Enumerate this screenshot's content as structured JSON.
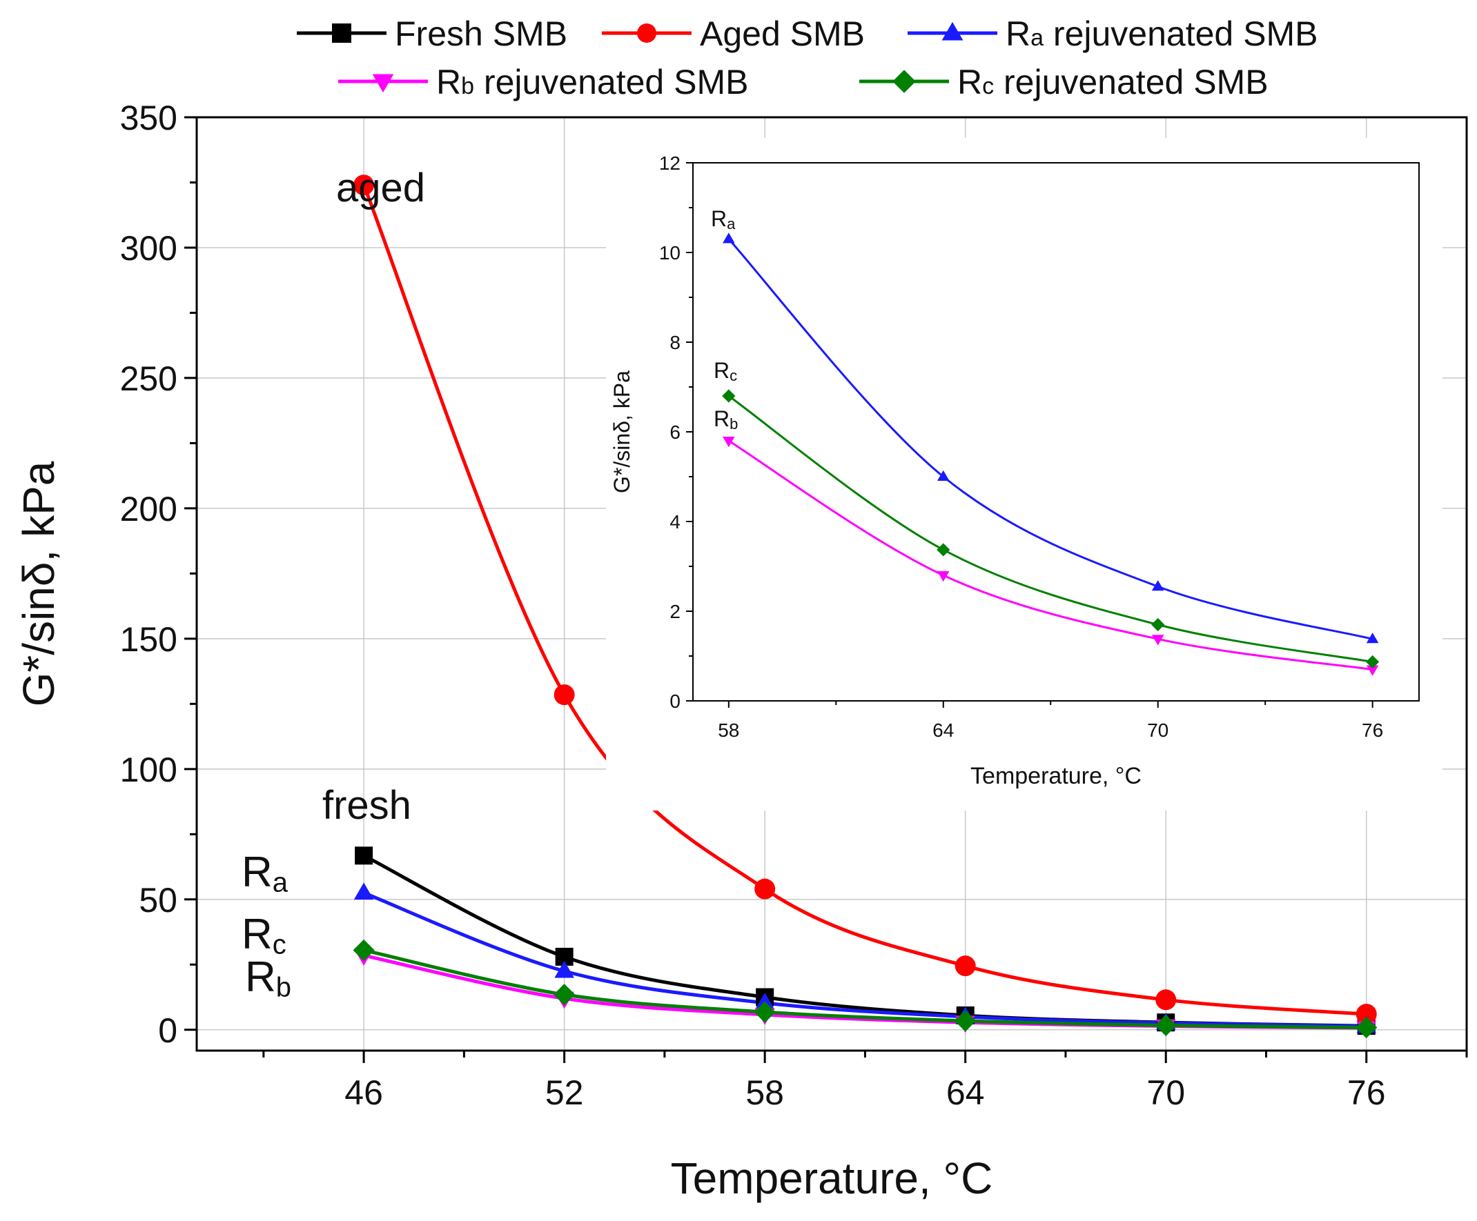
{
  "chart_data": [
    {
      "type": "line",
      "role": "main",
      "title": "",
      "xlabel": "Temperature, °C",
      "ylabel": "G*/sinδ, kPa",
      "xlim": [
        41,
        79
      ],
      "ylim": [
        -8,
        350
      ],
      "xticks": [
        46,
        52,
        58,
        64,
        70,
        76
      ],
      "yticks": [
        0,
        50,
        100,
        150,
        200,
        250,
        300,
        350
      ],
      "x": [
        46,
        52,
        58,
        64,
        70,
        76
      ],
      "grid": true,
      "legend_position": "top",
      "series": [
        {
          "name": "Fresh SMB",
          "color": "#000000",
          "marker": "square",
          "values": [
            66.8,
            28.0,
            12.5,
            5.5,
            2.8,
            1.5
          ]
        },
        {
          "name": "Aged SMB",
          "color": "#ff0000",
          "marker": "circle",
          "values": [
            324,
            128.5,
            54,
            24.5,
            11.5,
            6.0
          ]
        },
        {
          "name": "Ra rejuvenated SMB",
          "color": "#1a1aff",
          "marker": "triangle-up",
          "values": [
            52.5,
            22.5,
            10.3,
            5.0,
            2.6,
            1.4
          ]
        },
        {
          "name": "Rb rejuvenated SMB",
          "color": "#ff00ff",
          "marker": "triangle-down",
          "values": [
            28.5,
            12.0,
            5.8,
            2.8,
            1.4,
            0.7
          ]
        },
        {
          "name": "Rc rejuvenated SMB",
          "color": "#008000",
          "marker": "diamond",
          "values": [
            30.5,
            13.5,
            6.8,
            3.4,
            1.7,
            0.85
          ]
        }
      ],
      "annotations": [
        {
          "text": "aged"
        },
        {
          "text": "fresh"
        },
        {
          "text": "R",
          "sub": "a"
        },
        {
          "text": "R",
          "sub": "c"
        },
        {
          "text": "R",
          "sub": "b"
        }
      ]
    },
    {
      "type": "line",
      "role": "inset",
      "title": "",
      "xlabel": "Temperature, °C",
      "ylabel": "G*/sinδ, kPa",
      "xlim": [
        57,
        77.3
      ],
      "ylim": [
        0,
        12
      ],
      "xticks": [
        58,
        64,
        70,
        76
      ],
      "yticks": [
        0,
        2,
        4,
        6,
        8,
        10,
        12
      ],
      "x": [
        58,
        64,
        70,
        76
      ],
      "grid": false,
      "series": [
        {
          "name": "Ra rejuvenated SMB",
          "color": "#1a1aff",
          "marker": "triangle-up",
          "values": [
            10.3,
            5.0,
            2.55,
            1.38
          ]
        },
        {
          "name": "Rb rejuvenated SMB",
          "color": "#ff00ff",
          "marker": "triangle-down",
          "values": [
            5.8,
            2.8,
            1.38,
            0.7
          ]
        },
        {
          "name": "Rc rejuvenated SMB",
          "color": "#008000",
          "marker": "diamond",
          "values": [
            6.8,
            3.37,
            1.7,
            0.87
          ]
        }
      ],
      "annotations": [
        {
          "text": "R",
          "sub": "a"
        },
        {
          "text": "R",
          "sub": "c"
        },
        {
          "text": "R",
          "sub": "b"
        }
      ]
    }
  ]
}
